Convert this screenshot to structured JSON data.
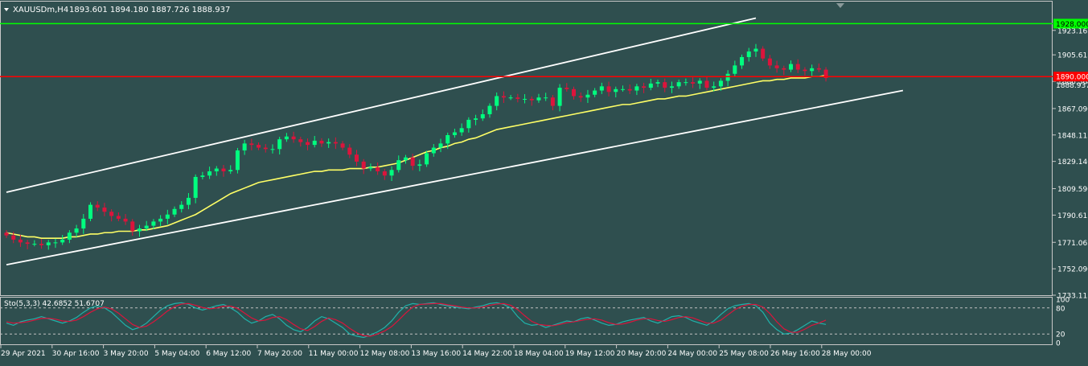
{
  "header": {
    "symbol_timeframe": "XAUUSDm,H4",
    "ohlc": "1893.601 1894.180 1887.726 1888.937"
  },
  "colors": {
    "background": "#2f4f4f",
    "frame": "#c8c8c8",
    "bull_candle": "#00ff7f",
    "bear_candle": "#dc143c",
    "trend_lines": "#ffffff",
    "moving_average": "#ffff66",
    "resistance_line": "#00ff00",
    "support_line": "#ff0000",
    "stoch_main": "#20b2aa",
    "stoch_signal": "#dc143c",
    "text": "#ffffff"
  },
  "chart_data": {
    "type": "candlestick",
    "title": "XAUUSDm,H4",
    "ylim": [
      1733.115,
      1934.0
    ],
    "price_ticks": [
      "1923.165",
      "1905.615",
      "1886.565",
      "1867.090",
      "1848.115",
      "1829.140",
      "1809.590",
      "1790.615",
      "1771.065",
      "1752.090",
      "1733.115"
    ],
    "x_tick_labels": [
      "29 Apr 2021",
      "30 Apr 16:00",
      "3 May 20:00",
      "5 May 04:00",
      "6 May 12:00",
      "7 May 20:00",
      "11 May 00:00",
      "12 May 08:00",
      "13 May 16:00",
      "14 May 22:00",
      "18 May 04:00",
      "19 May 12:00",
      "20 May 20:00",
      "24 May 00:00",
      "25 May 08:00",
      "26 May 16:00",
      "28 May 00:00"
    ],
    "levels": [
      {
        "label": "1928.000",
        "value": 1928.0,
        "color": "#00ff00"
      },
      {
        "label": "1890.000",
        "value": 1890.0,
        "color": "#ff0000"
      }
    ],
    "current_price_label": "1888.937",
    "close": [
      1776,
      1773,
      1771,
      1770,
      1770,
      1769,
      1771,
      1771,
      1773,
      1778,
      1781,
      1788,
      1798,
      1796,
      1793,
      1790,
      1788,
      1786,
      1779,
      1781,
      1783,
      1786,
      1788,
      1791,
      1795,
      1798,
      1803,
      1818,
      1819,
      1822,
      1824,
      1822,
      1823,
      1837,
      1842,
      1841,
      1839,
      1838,
      1838,
      1845,
      1847,
      1845,
      1843,
      1841,
      1844,
      1842,
      1843,
      1842,
      1839,
      1834,
      1829,
      1824,
      1825,
      1822,
      1819,
      1823,
      1830,
      1832,
      1826,
      1827,
      1835,
      1839,
      1842,
      1848,
      1850,
      1853,
      1859,
      1860,
      1863,
      1869,
      1876,
      1875,
      1875,
      1874,
      1874,
      1873,
      1875,
      1875,
      1869,
      1882,
      1881,
      1876,
      1875,
      1877,
      1880,
      1883,
      1879,
      1881,
      1881,
      1880,
      1883,
      1882,
      1885,
      1886,
      1882,
      1883,
      1886,
      1886,
      1885,
      1887,
      1882,
      1883,
      1887,
      1892,
      1898,
      1904,
      1908,
      1910,
      1903,
      1898,
      1896,
      1895,
      1899,
      1895,
      1894,
      1896,
      1895,
      1889
    ],
    "series": [
      {
        "name": "Moving Average",
        "values": [
          1778,
          1777,
          1776,
          1775,
          1775,
          1774,
          1774,
          1774,
          1774,
          1775,
          1775,
          1776,
          1777,
          1777,
          1778,
          1778,
          1779,
          1779,
          1779,
          1780,
          1780,
          1781,
          1782,
          1783,
          1785,
          1787,
          1789,
          1791,
          1794,
          1797,
          1800,
          1803,
          1806,
          1808,
          1810,
          1812,
          1814,
          1815,
          1816,
          1817,
          1818,
          1819,
          1820,
          1821,
          1822,
          1822,
          1823,
          1823,
          1823,
          1824,
          1824,
          1824,
          1825,
          1825,
          1826,
          1827,
          1828,
          1830,
          1832,
          1834,
          1836,
          1837,
          1839,
          1840,
          1842,
          1843,
          1845,
          1846,
          1848,
          1850,
          1852,
          1853,
          1854,
          1855,
          1856,
          1857,
          1858,
          1859,
          1860,
          1861,
          1862,
          1863,
          1864,
          1865,
          1866,
          1867,
          1868,
          1869,
          1870,
          1870,
          1871,
          1872,
          1873,
          1874,
          1874,
          1875,
          1876,
          1876,
          1877,
          1878,
          1879,
          1880,
          1881,
          1882,
          1883,
          1884,
          1885,
          1886,
          1887,
          1887,
          1888,
          1888,
          1889,
          1889,
          1889,
          1890,
          1890,
          1891
        ]
      }
    ],
    "channel_lines": [
      {
        "name": "upper",
        "points": [
          [
            0,
            1807
          ],
          [
            107,
            1932
          ]
        ]
      },
      {
        "name": "lower",
        "points": [
          [
            0,
            1755
          ],
          [
            128,
            1880
          ]
        ]
      }
    ],
    "oscillator": {
      "label": "Sto(5,3,3) 42.6852 51.6707",
      "levels": [
        80,
        20
      ],
      "axis_labels": [
        "100",
        "80",
        "20",
        "0"
      ],
      "main": [
        45,
        40,
        48,
        52,
        55,
        60,
        55,
        50,
        45,
        50,
        58,
        70,
        80,
        85,
        80,
        70,
        55,
        40,
        30,
        35,
        45,
        60,
        75,
        85,
        90,
        92,
        88,
        80,
        75,
        80,
        85,
        88,
        80,
        70,
        55,
        45,
        50,
        60,
        65,
        55,
        40,
        30,
        25,
        35,
        50,
        60,
        55,
        45,
        35,
        20,
        15,
        12,
        18,
        25,
        35,
        50,
        70,
        85,
        90,
        88,
        90,
        92,
        88,
        85,
        82,
        80,
        78,
        82,
        85,
        90,
        92,
        88,
        80,
        60,
        45,
        40,
        42,
        35,
        40,
        45,
        50,
        48,
        55,
        58,
        52,
        45,
        40,
        42,
        48,
        52,
        55,
        58,
        50,
        45,
        52,
        60,
        62,
        58,
        50,
        45,
        40,
        50,
        65,
        78,
        85,
        88,
        90,
        85,
        70,
        45,
        30,
        20,
        22,
        30,
        40,
        50,
        45,
        42
      ],
      "signal": [
        48,
        45,
        46,
        48,
        52,
        56,
        56,
        54,
        50,
        49,
        52,
        60,
        70,
        78,
        82,
        78,
        68,
        55,
        42,
        35,
        38,
        48,
        60,
        73,
        83,
        89,
        90,
        86,
        81,
        78,
        80,
        84,
        84,
        79,
        68,
        57,
        50,
        52,
        58,
        60,
        53,
        42,
        32,
        28,
        37,
        49,
        57,
        53,
        45,
        33,
        23,
        16,
        15,
        20,
        27,
        37,
        52,
        68,
        82,
        88,
        89,
        90,
        90,
        87,
        85,
        82,
        80,
        80,
        82,
        86,
        89,
        90,
        86,
        76,
        62,
        49,
        42,
        40,
        39,
        42,
        46,
        48,
        51,
        54,
        55,
        52,
        46,
        42,
        43,
        47,
        52,
        55,
        55,
        51,
        49,
        53,
        58,
        60,
        57,
        51,
        45,
        45,
        52,
        64,
        76,
        84,
        88,
        88,
        82,
        67,
        48,
        32,
        24,
        24,
        31,
        40,
        45,
        52
      ]
    }
  }
}
